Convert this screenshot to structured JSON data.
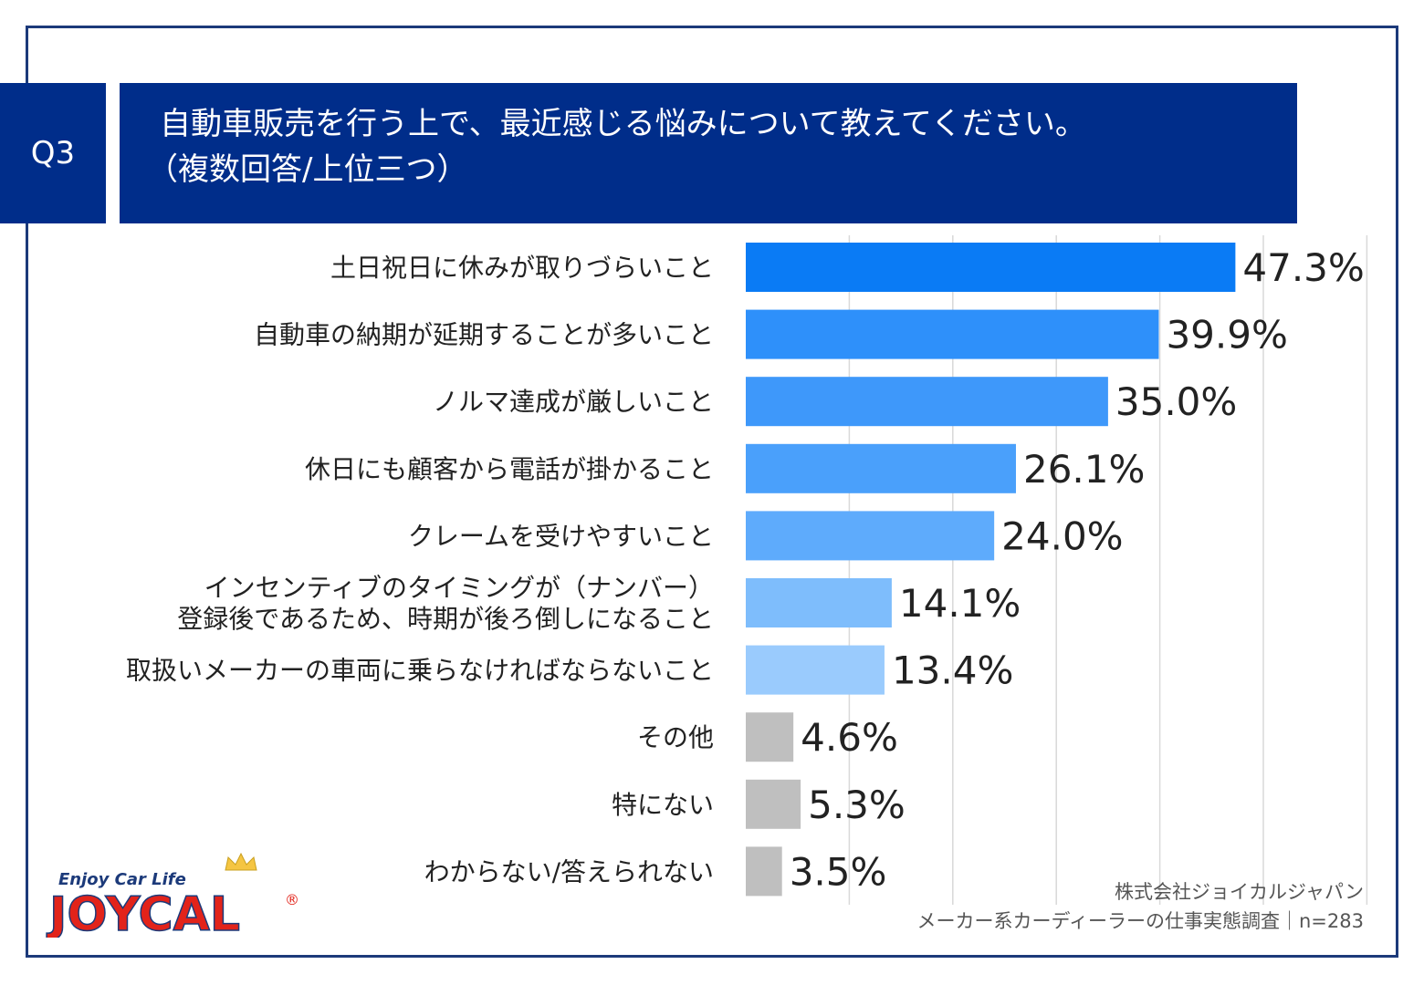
{
  "question": {
    "number": "Q3",
    "title_line1": "自動車販売を行う上で、最近感じる悩みについて教えてください。",
    "title_line2": "（複数回答/上位三つ）"
  },
  "chart_data": {
    "type": "bar",
    "orientation": "horizontal",
    "categories": [
      [
        "土日祝日に休みが取りづらいこと"
      ],
      [
        "自動車の納期が延期することが多いこと"
      ],
      [
        "ノルマ達成が厳しいこと"
      ],
      [
        "休日にも顧客から電話が掛かること"
      ],
      [
        "クレームを受けやすいこと"
      ],
      [
        "インセンティブのタイミングが（ナンバー）",
        "登録後であるため、時期が後ろ倒しになること"
      ],
      [
        "取扱いメーカーの車両に乗らなければならないこと"
      ],
      [
        "その他"
      ],
      [
        "特にない"
      ],
      [
        "わからない/答えられない"
      ]
    ],
    "values": [
      47.3,
      39.9,
      35.0,
      26.1,
      24.0,
      14.1,
      13.4,
      4.6,
      5.3,
      3.5
    ],
    "value_labels": [
      "47.3%",
      "39.9%",
      "35.0%",
      "26.1%",
      "24.0%",
      "14.1%",
      "13.4%",
      "4.6%",
      "5.3%",
      "3.5%"
    ],
    "bar_colors": [
      "#0a7bf5",
      "#2e90fa",
      "#3e98fa",
      "#4aa0fb",
      "#5eabfc",
      "#7ebdfc",
      "#9acbfd",
      "#bfbfbf",
      "#bfbfbf",
      "#bfbfbf"
    ],
    "xlim": [
      0,
      60
    ],
    "grid": true,
    "gridline_step": 10
  },
  "source": {
    "company": "株式会社ジョイカルジャパン",
    "survey": "メーカー系カーディーラーの仕事実態調査｜n=283"
  },
  "logo": {
    "tagline": "Enjoy Car Life",
    "brand": "JOYCAL",
    "registered": "®"
  }
}
